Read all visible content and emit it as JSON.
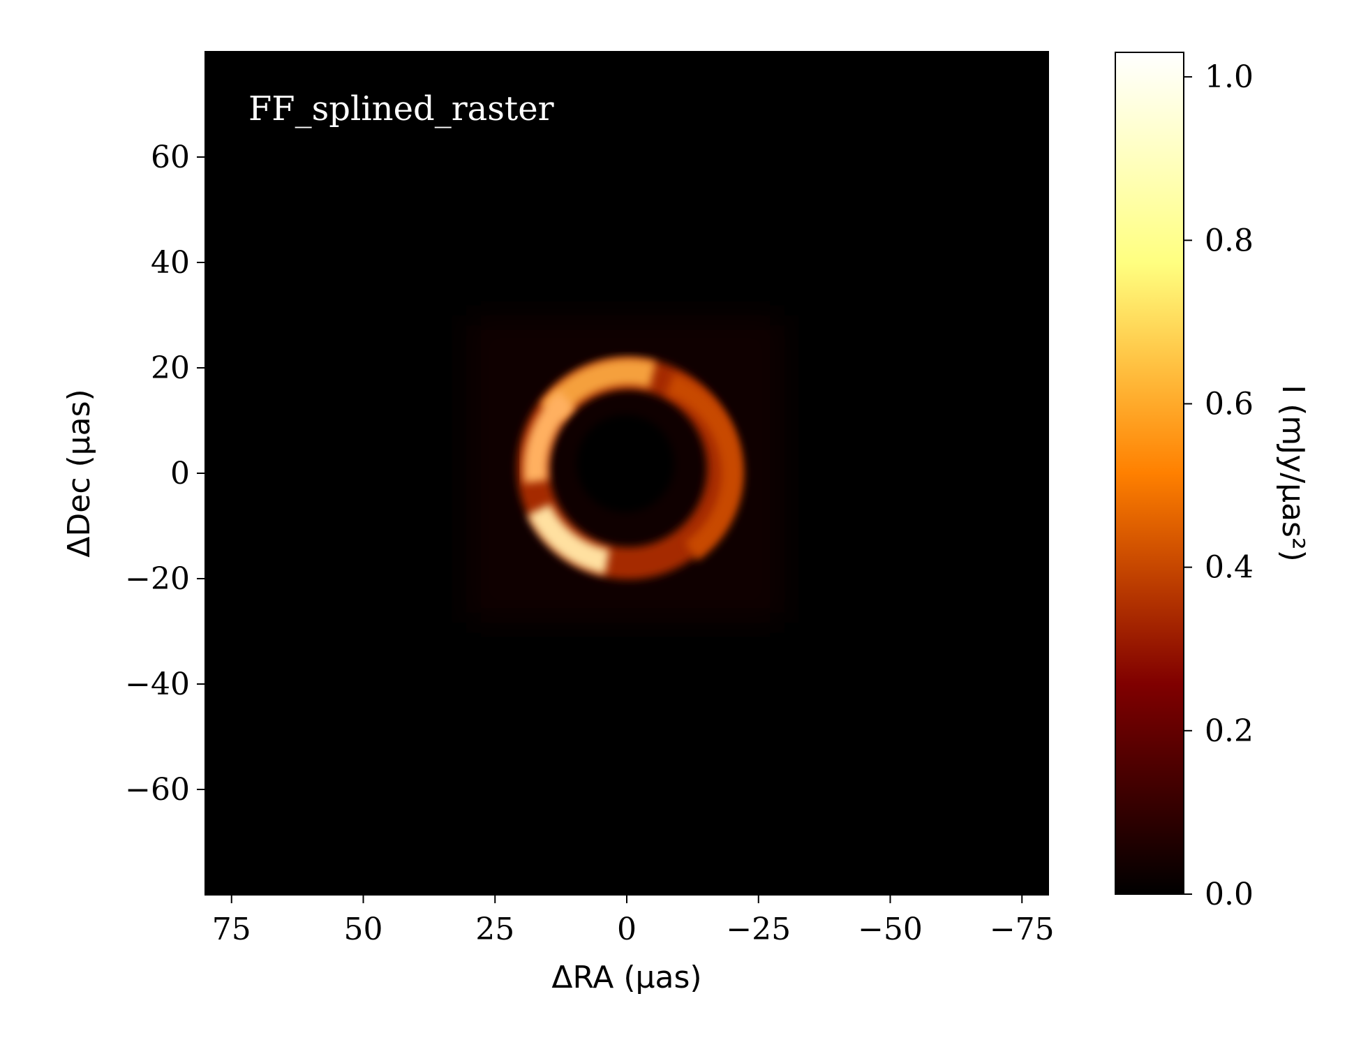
{
  "chart_data": {
    "type": "heatmap",
    "title": "",
    "panel_label": "FF_splined_raster",
    "xlabel": "ΔRA (μas)",
    "ylabel": "ΔDec (μas)",
    "xlim": [
      80,
      -80
    ],
    "ylim": [
      -80,
      80
    ],
    "x_reversed": true,
    "xticks": [
      75,
      50,
      25,
      0,
      -25,
      -50,
      -75
    ],
    "xtick_labels": [
      "75",
      "50",
      "25",
      "0",
      "−25",
      "−50",
      "−75"
    ],
    "yticks": [
      60,
      40,
      20,
      0,
      -20,
      -40,
      -60
    ],
    "ytick_labels": [
      "60",
      "40",
      "20",
      "0",
      "−20",
      "−40",
      "−60"
    ],
    "colormap": "afmhot",
    "background_color": "#000000",
    "colorbar": {
      "label": "I (mJy/μas²)",
      "range": [
        0.0,
        1.03
      ],
      "ticks": [
        0.0,
        0.2,
        0.4,
        0.6,
        0.8,
        1.0
      ],
      "tick_labels": [
        "0.0",
        "0.2",
        "0.4",
        "0.6",
        "0.8",
        "1.0"
      ]
    },
    "image_description_values": {
      "ring_center": [
        2,
        1
      ],
      "ring_radius": 18,
      "ring_width": 5,
      "peak_intensity": 1.0,
      "faint_envelope_extent": [
        30,
        -30,
        -30,
        30
      ]
    }
  }
}
